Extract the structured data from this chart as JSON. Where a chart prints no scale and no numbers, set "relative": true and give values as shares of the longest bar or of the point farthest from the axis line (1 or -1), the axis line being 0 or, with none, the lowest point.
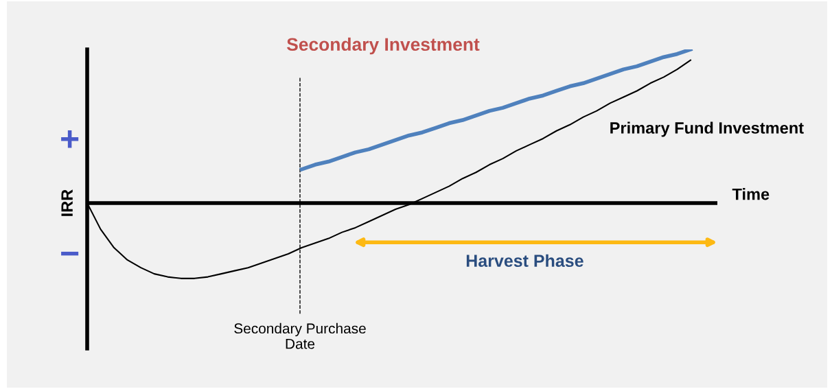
{
  "chart_data": {
    "type": "line",
    "title": "Secondary Investment",
    "xlabel": "Time",
    "ylabel": "IRR",
    "relative": true,
    "categories": [
      null,
      null,
      null,
      null,
      null,
      null,
      null,
      null,
      null,
      null,
      null,
      null,
      null,
      null,
      null,
      null,
      null,
      null,
      null,
      null,
      null,
      null,
      null,
      null,
      null,
      null,
      null,
      null,
      null,
      null,
      null,
      null,
      null,
      null,
      null,
      null,
      null,
      null,
      null,
      null,
      null,
      null,
      null,
      null,
      null,
      null,
      null,
      null
    ],
    "series": [
      {
        "name": "Primary Fund Investment",
        "color": "#000000",
        "values": [
          0,
          -0.17,
          -0.29,
          -0.37,
          -0.42,
          -0.46,
          -0.48,
          -0.49,
          -0.49,
          -0.48,
          -0.46,
          -0.44,
          -0.42,
          -0.39,
          -0.36,
          -0.33,
          -0.29,
          -0.26,
          -0.23,
          -0.19,
          -0.16,
          -0.12,
          -0.08,
          -0.04,
          -0.01,
          0.03,
          0.07,
          0.11,
          0.16,
          0.2,
          0.25,
          0.29,
          0.34,
          0.38,
          0.42,
          0.47,
          0.51,
          0.56,
          0.6,
          0.65,
          0.69,
          0.73,
          0.78,
          0.82,
          0.87,
          0.93,
          null,
          null
        ]
      },
      {
        "color": "#4f81bd",
        "values": [
          null,
          null,
          null,
          null,
          null,
          null,
          null,
          null,
          null,
          null,
          null,
          null,
          null,
          null,
          null,
          null,
          0.22,
          0.25,
          0.27,
          0.3,
          0.33,
          0.35,
          0.38,
          0.41,
          0.44,
          0.46,
          0.49,
          0.52,
          0.54,
          0.57,
          0.6,
          0.62,
          0.65,
          0.68,
          0.7,
          0.73,
          0.76,
          0.78,
          0.81,
          0.84,
          0.87,
          0.89,
          0.92,
          0.95,
          0.97,
          1.0,
          null,
          null
        ]
      }
    ],
    "annotations": [
      "+",
      "−",
      "Secondary Purchase\nDate",
      "Harvest Phase"
    ],
    "legend": false
  }
}
